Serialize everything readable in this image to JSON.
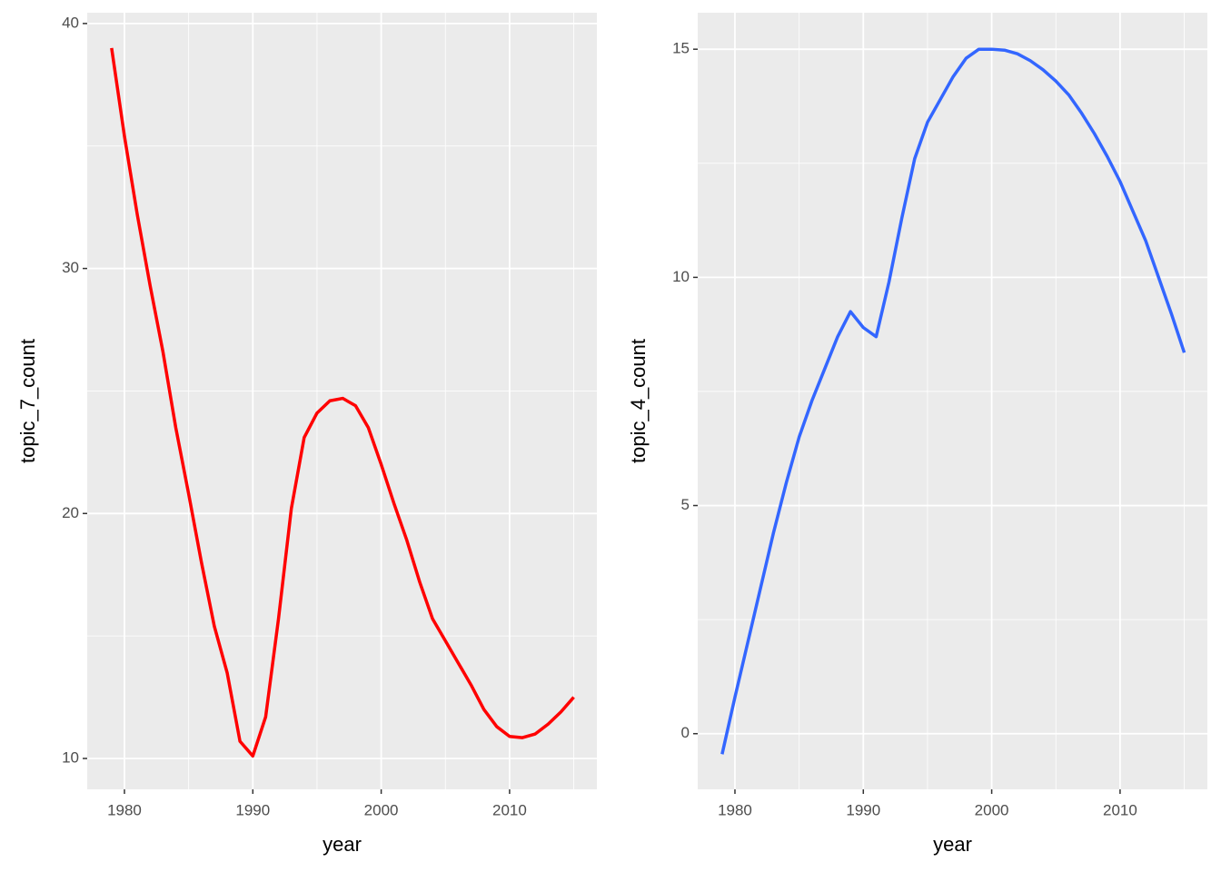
{
  "chart_data": [
    {
      "type": "line",
      "x_label": "year",
      "y_label": "topic_7_count",
      "color": "#ff0000",
      "x": [
        1979,
        1980,
        1981,
        1982,
        1983,
        1984,
        1985,
        1986,
        1987,
        1988,
        1989,
        1990,
        1991,
        1992,
        1993,
        1994,
        1995,
        1996,
        1997,
        1998,
        1999,
        2000,
        2001,
        2002,
        2003,
        2004,
        2005,
        2006,
        2007,
        2008,
        2009,
        2010,
        2011,
        2012,
        2013,
        2014,
        2015
      ],
      "values": [
        39.0,
        35.4,
        32.2,
        29.3,
        26.6,
        23.5,
        20.8,
        18.0,
        15.4,
        13.5,
        10.7,
        10.1,
        11.7,
        15.7,
        20.2,
        23.1,
        24.1,
        24.6,
        24.7,
        24.4,
        23.5,
        22.0,
        20.4,
        18.9,
        17.2,
        15.7,
        14.8,
        13.9,
        13.0,
        12.0,
        11.3,
        10.9,
        10.85,
        11.0,
        11.4,
        11.9,
        12.5
      ],
      "xlim": [
        1977.1,
        2016.8
      ],
      "ylim": [
        8.74,
        40.44
      ],
      "xticks": [
        1980,
        1990,
        2000,
        2010
      ],
      "yticks": [
        10,
        20,
        30,
        40
      ],
      "grid": true
    },
    {
      "type": "line",
      "x_label": "year",
      "y_label": "topic_4_count",
      "color": "#3366ff",
      "x": [
        1979,
        1980,
        1981,
        1982,
        1983,
        1984,
        1985,
        1986,
        1987,
        1988,
        1989,
        1990,
        1991,
        1992,
        1993,
        1994,
        1995,
        1996,
        1997,
        1998,
        1999,
        2000,
        2001,
        2002,
        2003,
        2004,
        2005,
        2006,
        2007,
        2008,
        2009,
        2010,
        2011,
        2012,
        2013,
        2014,
        2015
      ],
      "values": [
        -0.45,
        0.8,
        2.0,
        3.2,
        4.4,
        5.5,
        6.5,
        7.3,
        8.0,
        8.7,
        9.25,
        8.9,
        8.7,
        9.9,
        11.3,
        12.6,
        13.4,
        13.9,
        14.4,
        14.8,
        15.0,
        15.0,
        14.98,
        14.9,
        14.75,
        14.55,
        14.3,
        14.0,
        13.6,
        13.15,
        12.65,
        12.1,
        11.45,
        10.8,
        10.0,
        9.2,
        8.35
      ],
      "xlim": [
        1977.1,
        2016.8
      ],
      "ylim": [
        -1.22,
        15.8
      ],
      "xticks": [
        1980,
        1990,
        2000,
        2010
      ],
      "yticks": [
        0,
        5,
        10,
        15
      ],
      "grid": true
    }
  ]
}
